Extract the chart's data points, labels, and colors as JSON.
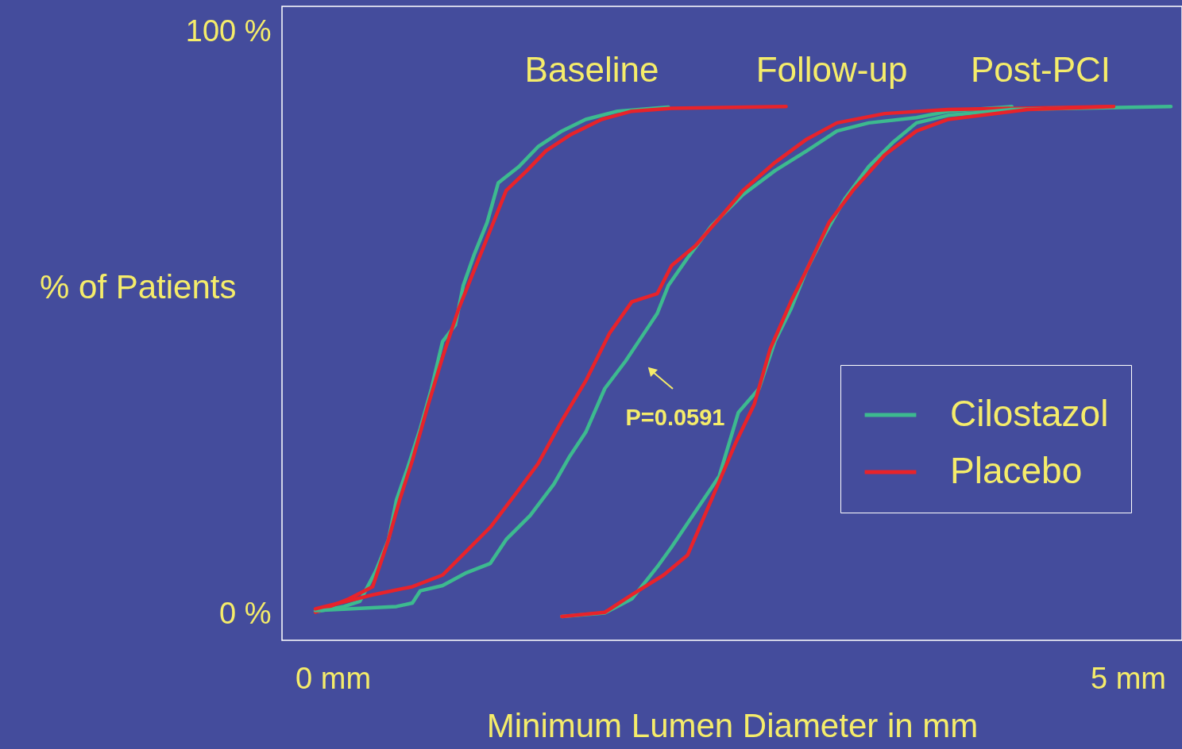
{
  "chart_data": {
    "type": "line",
    "xlabel": "Minimum Lumen Diameter in mm",
    "ylabel": "% of Patients",
    "xlim": [
      -0.32,
      5.34
    ],
    "ylim": [
      -4.4,
      104.4
    ],
    "xticks": [
      {
        "value": 0,
        "label": "0 mm"
      },
      {
        "value": 5,
        "label": "5 mm"
      }
    ],
    "yticks": [
      {
        "value": 0,
        "label": "0 %"
      },
      {
        "value": 100,
        "label": "100 %"
      }
    ],
    "grid": false,
    "legend": "right",
    "marker": "none",
    "line_style": "solid",
    "annotations": [
      "Baseline",
      "Follow-up",
      "Post-PCI",
      "P=0.0591"
    ],
    "series": [
      {
        "name": "Cilostazol",
        "color": "#3dba8f",
        "x": [
          -0.11,
          0.07,
          0.17,
          0.27,
          0.35,
          0.4,
          0.47,
          0.55,
          0.62,
          0.69,
          0.77,
          0.82,
          0.89,
          0.97,
          1.04,
          1.17,
          1.29,
          1.44,
          1.59,
          1.79,
          2.11
        ],
        "values": [
          0.5,
          1.4,
          2.3,
          7.5,
          12.9,
          19.7,
          25.2,
          32,
          38.8,
          46.9,
          49.7,
          56.5,
          61.9,
          67.3,
          74.1,
          76.9,
          80.3,
          83,
          85,
          86.4,
          87.1
        ]
      },
      {
        "name": "Placebo",
        "color": "#e8232a",
        "x": [
          -0.11,
          0.1,
          0.25,
          0.35,
          0.42,
          0.5,
          0.6,
          0.69,
          0.79,
          0.89,
          0.99,
          1.09,
          1.22,
          1.34,
          1.49,
          1.69,
          1.88,
          2.13,
          2.85
        ],
        "values": [
          0.4,
          2.7,
          4.8,
          12.9,
          19.7,
          26.5,
          36.1,
          44.2,
          52.4,
          59.2,
          66,
          72.8,
          76.2,
          79.6,
          82.3,
          85,
          86.4,
          86.9,
          87.2
        ]
      },
      {
        "color": "#3dba8f",
        "x": [
          -0.11,
          0.4,
          0.5,
          0.55,
          0.69,
          0.84,
          0.99,
          1.09,
          1.24,
          1.39,
          1.49,
          1.59,
          1.71,
          1.84,
          1.94,
          2.04,
          2.11,
          2.23,
          2.38,
          2.58,
          2.78,
          2.98,
          3.17,
          3.37,
          3.67,
          3.87,
          4.27
        ],
        "values": [
          0.7,
          1.4,
          2,
          4.1,
          5,
          7.2,
          8.8,
          12.9,
          17,
          22.4,
          27.2,
          31.3,
          38.8,
          43.5,
          47.6,
          51.7,
          56.5,
          61.2,
          66.7,
          72.1,
          76.2,
          79.6,
          83,
          84.4,
          85.3,
          86.4,
          87.2
        ]
      },
      {
        "color": "#e8232a",
        "x": [
          -0.11,
          0.25,
          0.5,
          0.69,
          0.84,
          0.99,
          1.14,
          1.29,
          1.44,
          1.59,
          1.74,
          1.88,
          2.04,
          2.13,
          2.28,
          2.43,
          2.58,
          2.78,
          2.98,
          3.17,
          3.47,
          3.87,
          4.91
        ],
        "values": [
          1,
          3.4,
          4.8,
          6.8,
          10.9,
          15,
          20.4,
          25.9,
          33.3,
          40.1,
          48.3,
          53.7,
          55.1,
          59.9,
          63.3,
          68,
          72.8,
          77.6,
          81.6,
          84.4,
          86,
          86.7,
          87.2
        ]
      },
      {
        "color": "#3dba8f",
        "x": [
          1.44,
          1.71,
          1.88,
          2.04,
          2.13,
          2.28,
          2.43,
          2.55,
          2.68,
          2.78,
          2.88,
          2.98,
          3.08,
          3.22,
          3.37,
          3.52,
          3.67,
          3.87,
          4.27,
          5.27
        ],
        "values": [
          -0.3,
          0.3,
          2.7,
          8.2,
          11.6,
          17.7,
          23.8,
          34.7,
          38.8,
          46.9,
          52.4,
          59.2,
          64.6,
          71.4,
          76.9,
          81,
          84.4,
          85.7,
          86.7,
          87.2
        ]
      },
      {
        "color": "#e8232a",
        "x": [
          1.44,
          1.71,
          1.88,
          2.08,
          2.23,
          2.38,
          2.53,
          2.65,
          2.75,
          2.88,
          2.98,
          3.12,
          3.27,
          3.47,
          3.67,
          3.87,
          4.37,
          4.91
        ],
        "values": [
          -0.3,
          0.4,
          3.4,
          6.8,
          10.2,
          19.7,
          29.3,
          36.1,
          45.6,
          53.7,
          59.2,
          67.3,
          72.8,
          78.9,
          83,
          85,
          86.7,
          87.2
        ]
      }
    ]
  }
}
